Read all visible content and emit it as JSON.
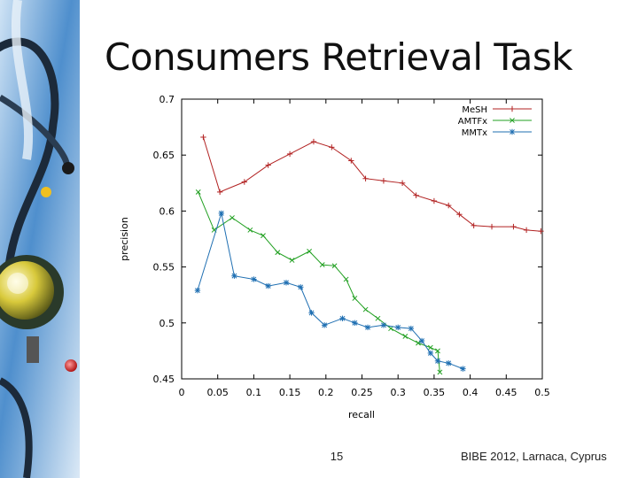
{
  "slide": {
    "title": "Consumers Retrieval Task",
    "page_number": "15",
    "conference": "BIBE 2012, Larnaca, Cyprus"
  },
  "colors": {
    "mesh": "#b22222",
    "amtfx": "#22a022",
    "mmtx": "#1f6fb2"
  },
  "chart_data": {
    "type": "line",
    "xlabel": "recall",
    "ylabel": "precision",
    "xlim": [
      0,
      0.5
    ],
    "ylim": [
      0.45,
      0.7
    ],
    "xticks": [
      "0",
      "0.05",
      "0.1",
      "0.15",
      "0.2",
      "0.25",
      "0.3",
      "0.35",
      "0.4",
      "0.45",
      "0.5"
    ],
    "yticks": [
      "0.45",
      "0.5",
      "0.55",
      "0.6",
      "0.65",
      "0.7"
    ],
    "legend_position": "top-right",
    "grid": false,
    "series": [
      {
        "name": "MeSH",
        "marker": "+",
        "x": [
          0.03,
          0.053,
          0.087,
          0.12,
          0.15,
          0.183,
          0.208,
          0.235,
          0.255,
          0.28,
          0.306,
          0.325,
          0.35,
          0.37,
          0.385,
          0.405,
          0.43,
          0.46,
          0.478,
          0.498
        ],
        "y": [
          0.666,
          0.617,
          0.626,
          0.641,
          0.651,
          0.662,
          0.657,
          0.645,
          0.629,
          0.627,
          0.625,
          0.614,
          0.609,
          0.605,
          0.597,
          0.587,
          0.586,
          0.586,
          0.583,
          0.582
        ]
      },
      {
        "name": "AMTFx",
        "marker": "x",
        "x": [
          0.023,
          0.045,
          0.07,
          0.095,
          0.113,
          0.133,
          0.153,
          0.177,
          0.195,
          0.212,
          0.228,
          0.24,
          0.255,
          0.272,
          0.29,
          0.31,
          0.328,
          0.345,
          0.355,
          0.358
        ],
        "y": [
          0.617,
          0.583,
          0.594,
          0.583,
          0.578,
          0.563,
          0.556,
          0.564,
          0.552,
          0.551,
          0.539,
          0.522,
          0.512,
          0.504,
          0.495,
          0.488,
          0.482,
          0.478,
          0.475,
          0.456
        ]
      },
      {
        "name": "MMTx",
        "marker": "*",
        "x": [
          0.022,
          0.055,
          0.073,
          0.1,
          0.12,
          0.145,
          0.165,
          0.18,
          0.198,
          0.223,
          0.24,
          0.258,
          0.28,
          0.3,
          0.318,
          0.333,
          0.345,
          0.355,
          0.37,
          0.39
        ],
        "y": [
          0.529,
          0.598,
          0.542,
          0.539,
          0.533,
          0.536,
          0.532,
          0.509,
          0.498,
          0.504,
          0.5,
          0.496,
          0.498,
          0.496,
          0.495,
          0.484,
          0.473,
          0.466,
          0.464,
          0.459
        ]
      }
    ]
  }
}
